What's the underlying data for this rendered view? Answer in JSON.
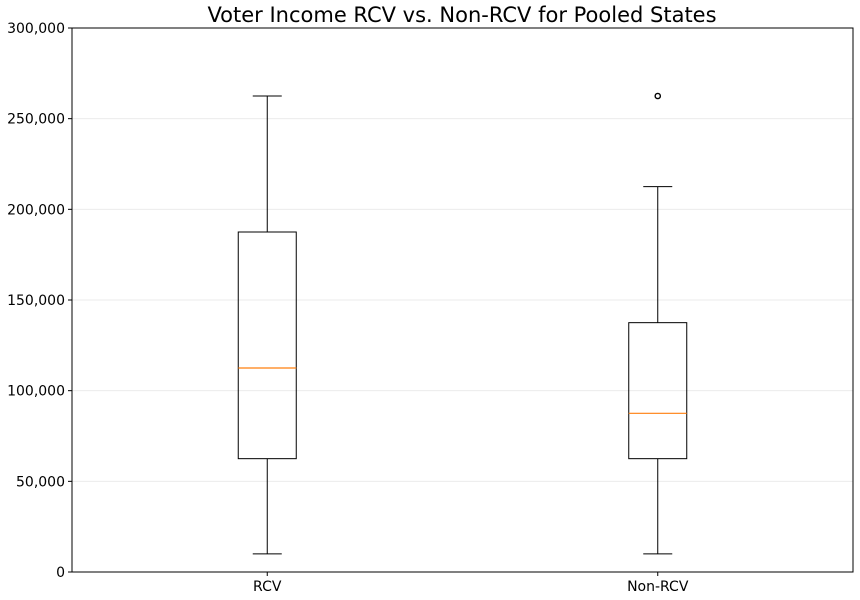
{
  "chart_data": {
    "type": "boxplot",
    "title": "Voter Income RCV vs. Non-RCV for Pooled States",
    "xlabel": "",
    "ylabel": "",
    "ylim": [
      0,
      300000
    ],
    "y_ticks": [
      0,
      50000,
      100000,
      150000,
      200000,
      250000,
      300000
    ],
    "y_tick_labels": [
      "0",
      "50,000",
      "100,000",
      "150,000",
      "200,000",
      "250,000",
      "300,000"
    ],
    "grid": "horizontal",
    "median_color": "#ff7f0e",
    "categories": [
      "RCV",
      "Non-RCV"
    ],
    "series": [
      {
        "name": "RCV",
        "whisker_low": 10000,
        "q1": 62500,
        "median": 112500,
        "q3": 187500,
        "whisker_high": 262500,
        "fliers": []
      },
      {
        "name": "Non-RCV",
        "whisker_low": 10000,
        "q1": 62500,
        "median": 87500,
        "q3": 137500,
        "whisker_high": 212500,
        "fliers": [
          262500
        ]
      }
    ]
  }
}
